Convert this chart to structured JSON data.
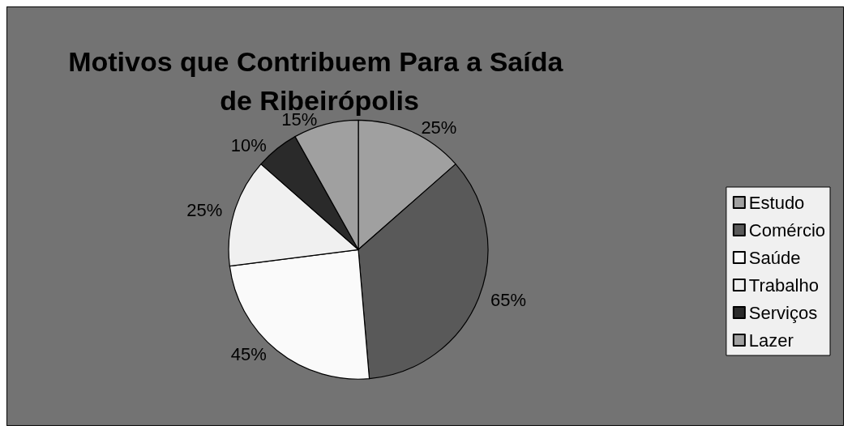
{
  "chart_data": {
    "type": "pie",
    "title": "Motivos que Contribuem Para a Saída de Ribeirópolis",
    "categories": [
      "Estudo",
      "Comércio",
      "Saúde",
      "Trabalho",
      "Serviços",
      "Lazer"
    ],
    "values": [
      25,
      65,
      45,
      25,
      10,
      15
    ],
    "colors": [
      "#a0a0a0",
      "#595959",
      "#fafafa",
      "#f0f0f0",
      "#2a2a2a",
      "#a0a0a0"
    ],
    "value_labels": [
      "25%",
      "65%",
      "45%",
      "25%",
      "10%",
      "15%"
    ],
    "legend": "right"
  }
}
